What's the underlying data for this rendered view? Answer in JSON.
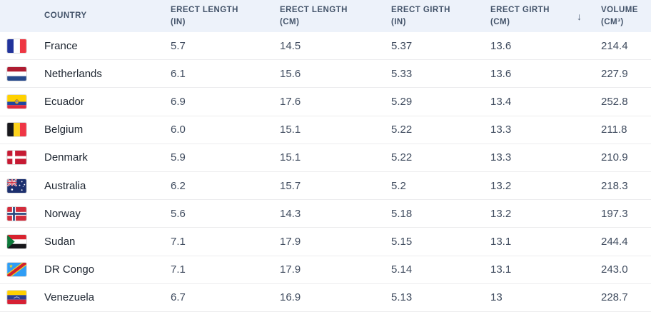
{
  "colors": {
    "header_bg": "#edf2fa",
    "header_text": "#44546a",
    "country_text": "#1c242f",
    "value_text": "#3f4b5e",
    "divider": "#ececee",
    "row_bg": "#ffffff"
  },
  "table": {
    "columns": [
      {
        "key": "country",
        "label": "COUNTRY"
      },
      {
        "key": "erect_length_in",
        "label": "ERECT LENGTH (IN)"
      },
      {
        "key": "erect_length_cm",
        "label": "ERECT LENGTH (CM)"
      },
      {
        "key": "erect_girth_in",
        "label": "ERECT GIRTH (IN)"
      },
      {
        "key": "erect_girth_cm",
        "label": "ERECT GIRTH (CM)",
        "sort": "desc",
        "sort_icon": "↓"
      },
      {
        "key": "volume_cm3",
        "label": "VOLUME (CM³)"
      }
    ],
    "rows": [
      {
        "flag_icon": "flag-france",
        "country": "France",
        "erect_length_in": "5.7",
        "erect_length_cm": "14.5",
        "erect_girth_in": "5.37",
        "erect_girth_cm": "13.6",
        "volume_cm3": "214.4"
      },
      {
        "flag_icon": "flag-netherlands",
        "country": "Netherlands",
        "erect_length_in": "6.1",
        "erect_length_cm": "15.6",
        "erect_girth_in": "5.33",
        "erect_girth_cm": "13.6",
        "volume_cm3": "227.9"
      },
      {
        "flag_icon": "flag-ecuador",
        "country": "Ecuador",
        "erect_length_in": "6.9",
        "erect_length_cm": "17.6",
        "erect_girth_in": "5.29",
        "erect_girth_cm": "13.4",
        "volume_cm3": "252.8"
      },
      {
        "flag_icon": "flag-belgium",
        "country": "Belgium",
        "erect_length_in": "6.0",
        "erect_length_cm": "15.1",
        "erect_girth_in": "5.22",
        "erect_girth_cm": "13.3",
        "volume_cm3": "211.8"
      },
      {
        "flag_icon": "flag-denmark",
        "country": "Denmark",
        "erect_length_in": "5.9",
        "erect_length_cm": "15.1",
        "erect_girth_in": "5.22",
        "erect_girth_cm": "13.3",
        "volume_cm3": "210.9"
      },
      {
        "flag_icon": "flag-australia",
        "country": "Australia",
        "erect_length_in": "6.2",
        "erect_length_cm": "15.7",
        "erect_girth_in": "5.2",
        "erect_girth_cm": "13.2",
        "volume_cm3": "218.3"
      },
      {
        "flag_icon": "flag-norway",
        "country": "Norway",
        "erect_length_in": "5.6",
        "erect_length_cm": "14.3",
        "erect_girth_in": "5.18",
        "erect_girth_cm": "13.2",
        "volume_cm3": "197.3"
      },
      {
        "flag_icon": "flag-sudan",
        "country": "Sudan",
        "erect_length_in": "7.1",
        "erect_length_cm": "17.9",
        "erect_girth_in": "5.15",
        "erect_girth_cm": "13.1",
        "volume_cm3": "244.4"
      },
      {
        "flag_icon": "flag-dr-congo",
        "country": "DR Congo",
        "erect_length_in": "7.1",
        "erect_length_cm": "17.9",
        "erect_girth_in": "5.14",
        "erect_girth_cm": "13.1",
        "volume_cm3": "243.0"
      },
      {
        "flag_icon": "flag-venezuela",
        "country": "Venezuela",
        "erect_length_in": "6.7",
        "erect_length_cm": "16.9",
        "erect_girth_in": "5.13",
        "erect_girth_cm": "13",
        "volume_cm3": "228.7"
      }
    ]
  }
}
